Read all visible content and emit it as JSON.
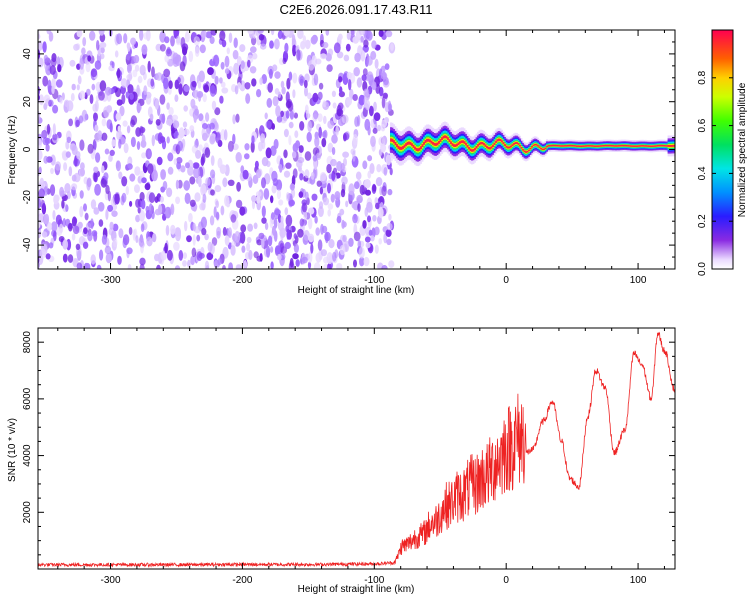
{
  "title": "C2E6.2026.091.17.43.R11",
  "chart_data": [
    {
      "type": "heatmap",
      "xlabel": "Height of straight line (km)",
      "ylabel": "Frequency (Hz)",
      "xlim": [
        -355,
        128
      ],
      "ylim": [
        -50,
        50
      ],
      "xticks": [
        -300,
        -200,
        -100,
        0,
        100
      ],
      "yticks": [
        -40,
        -20,
        0,
        20,
        40
      ],
      "noise_region": {
        "x": [
          -355,
          -88
        ],
        "y": [
          -50,
          50
        ]
      },
      "signal_band": {
        "x": [
          -88,
          128
        ],
        "center_y": 1.5
      },
      "colorbar": {
        "label": "Normalized spectral amplitude",
        "range": [
          0,
          1
        ],
        "ticks": [
          0.0,
          0.2,
          0.4,
          0.6,
          0.8
        ]
      }
    },
    {
      "type": "line",
      "xlabel": "Height of straight line (km)",
      "ylabel": "SNR (10 * v/v)",
      "xlim": [
        -355,
        128
      ],
      "ylim": [
        0,
        8500
      ],
      "xticks": [
        -300,
        -200,
        -100,
        0,
        100
      ],
      "yticks": [
        2000,
        4000,
        6000,
        8000
      ],
      "color": "#ee2222",
      "series": [
        {
          "name": "SNR",
          "x": [
            -355,
            -300,
            -250,
            -200,
            -150,
            -100,
            -85,
            -78,
            -65,
            -55,
            -45,
            -35,
            -25,
            -15,
            -5,
            0,
            10,
            20,
            28,
            35,
            42,
            48,
            55,
            62,
            68,
            75,
            82,
            90,
            97,
            103,
            110,
            115,
            120,
            128
          ],
          "y": [
            150,
            150,
            150,
            160,
            160,
            180,
            220,
            700,
            1000,
            1400,
            1900,
            2200,
            2500,
            2800,
            3300,
            3600,
            3900,
            4200,
            5200,
            5900,
            4500,
            3200,
            2900,
            5400,
            7000,
            6400,
            4100,
            4900,
            7600,
            7200,
            6000,
            8300,
            7700,
            6300
          ]
        }
      ]
    }
  ]
}
